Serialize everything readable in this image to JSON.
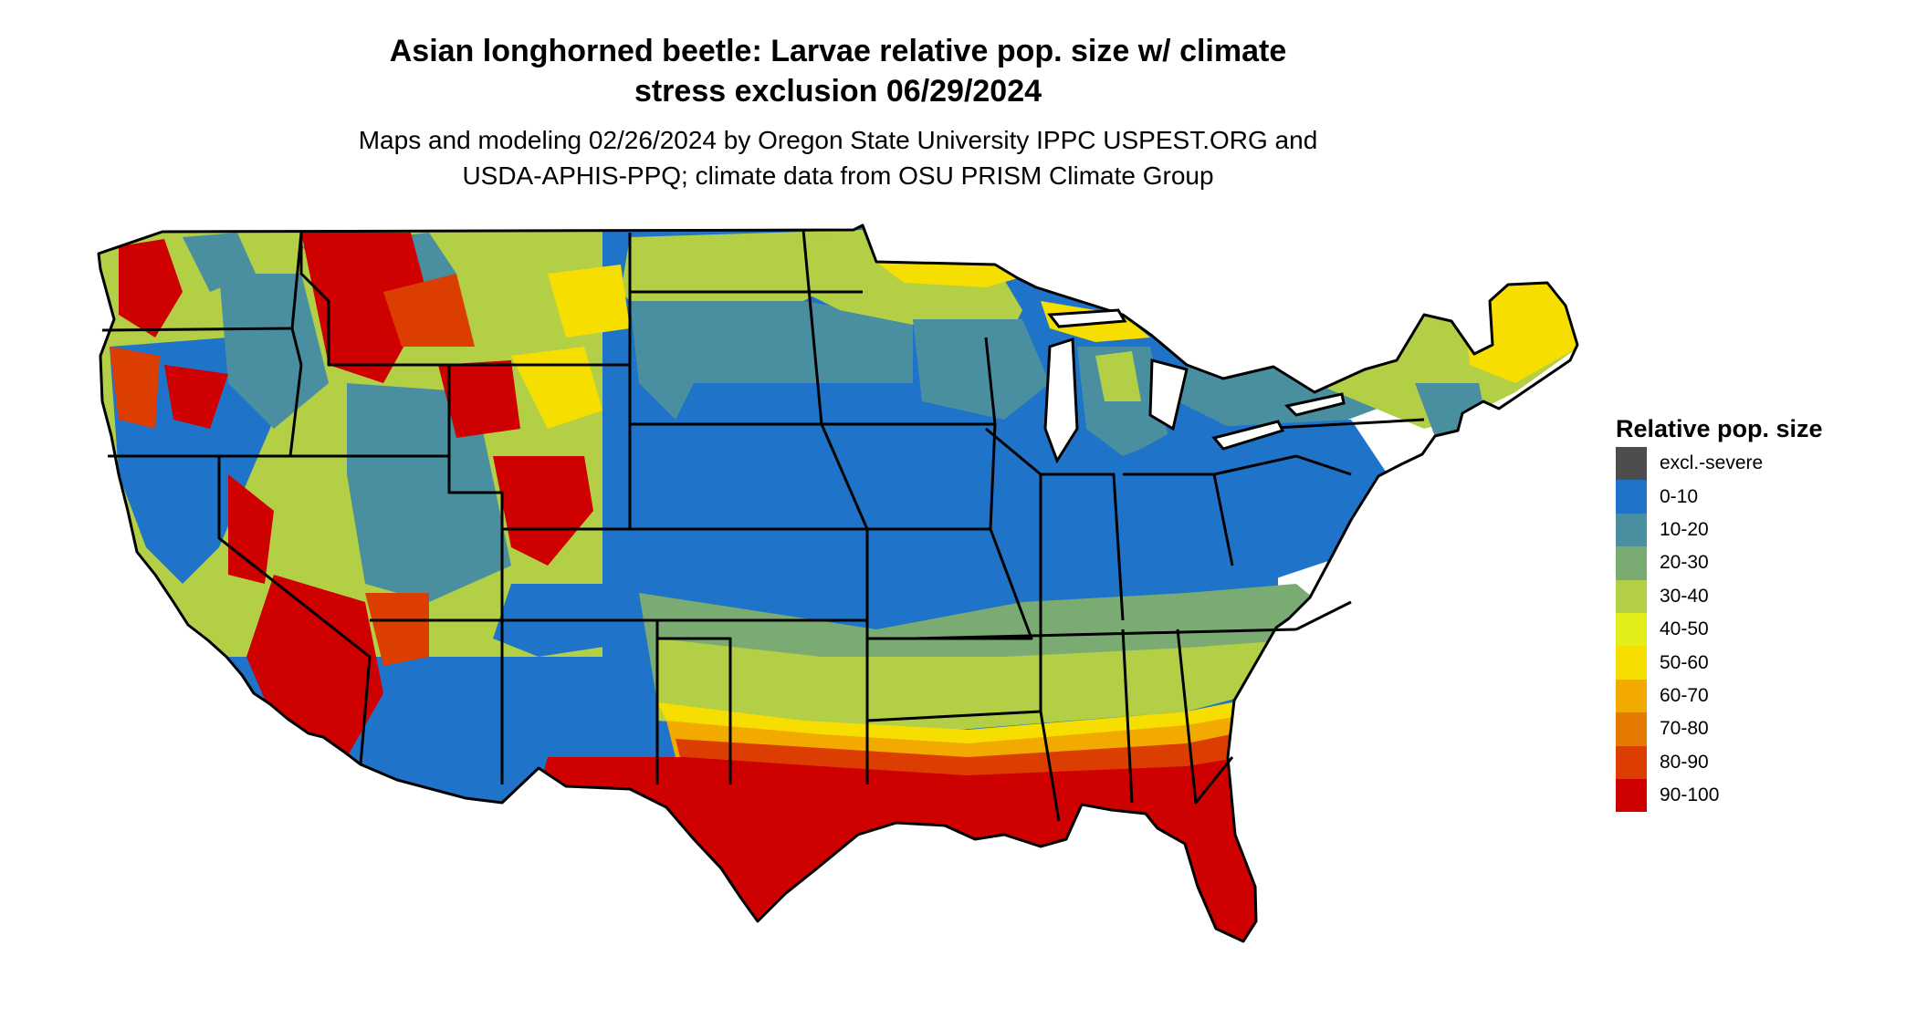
{
  "title": {
    "line1": "Asian longhorned beetle: Larvae relative pop. size w/ climate",
    "line2": "stress exclusion 06/29/2024"
  },
  "subtitle": {
    "line1": "Maps and modeling 02/26/2024 by Oregon State University IPPC USPEST.ORG and",
    "line2": "USDA-APHIS-PPQ; climate data from OSU PRISM Climate Group"
  },
  "legend": {
    "title": "Relative pop. size",
    "items": [
      {
        "label": "excl.-severe",
        "color": "#4d4d4d"
      },
      {
        "label": "0-10",
        "color": "#1f74c9"
      },
      {
        "label": "10-20",
        "color": "#4a8fa0"
      },
      {
        "label": "20-30",
        "color": "#7aab73"
      },
      {
        "label": "30-40",
        "color": "#b2cf46"
      },
      {
        "label": "40-50",
        "color": "#e2ee1a"
      },
      {
        "label": "50-60",
        "color": "#f6df00"
      },
      {
        "label": "60-70",
        "color": "#f2aa00"
      },
      {
        "label": "70-80",
        "color": "#e57a00"
      },
      {
        "label": "80-90",
        "color": "#dc3d00"
      },
      {
        "label": "90-100",
        "color": "#cf0000"
      }
    ]
  }
}
